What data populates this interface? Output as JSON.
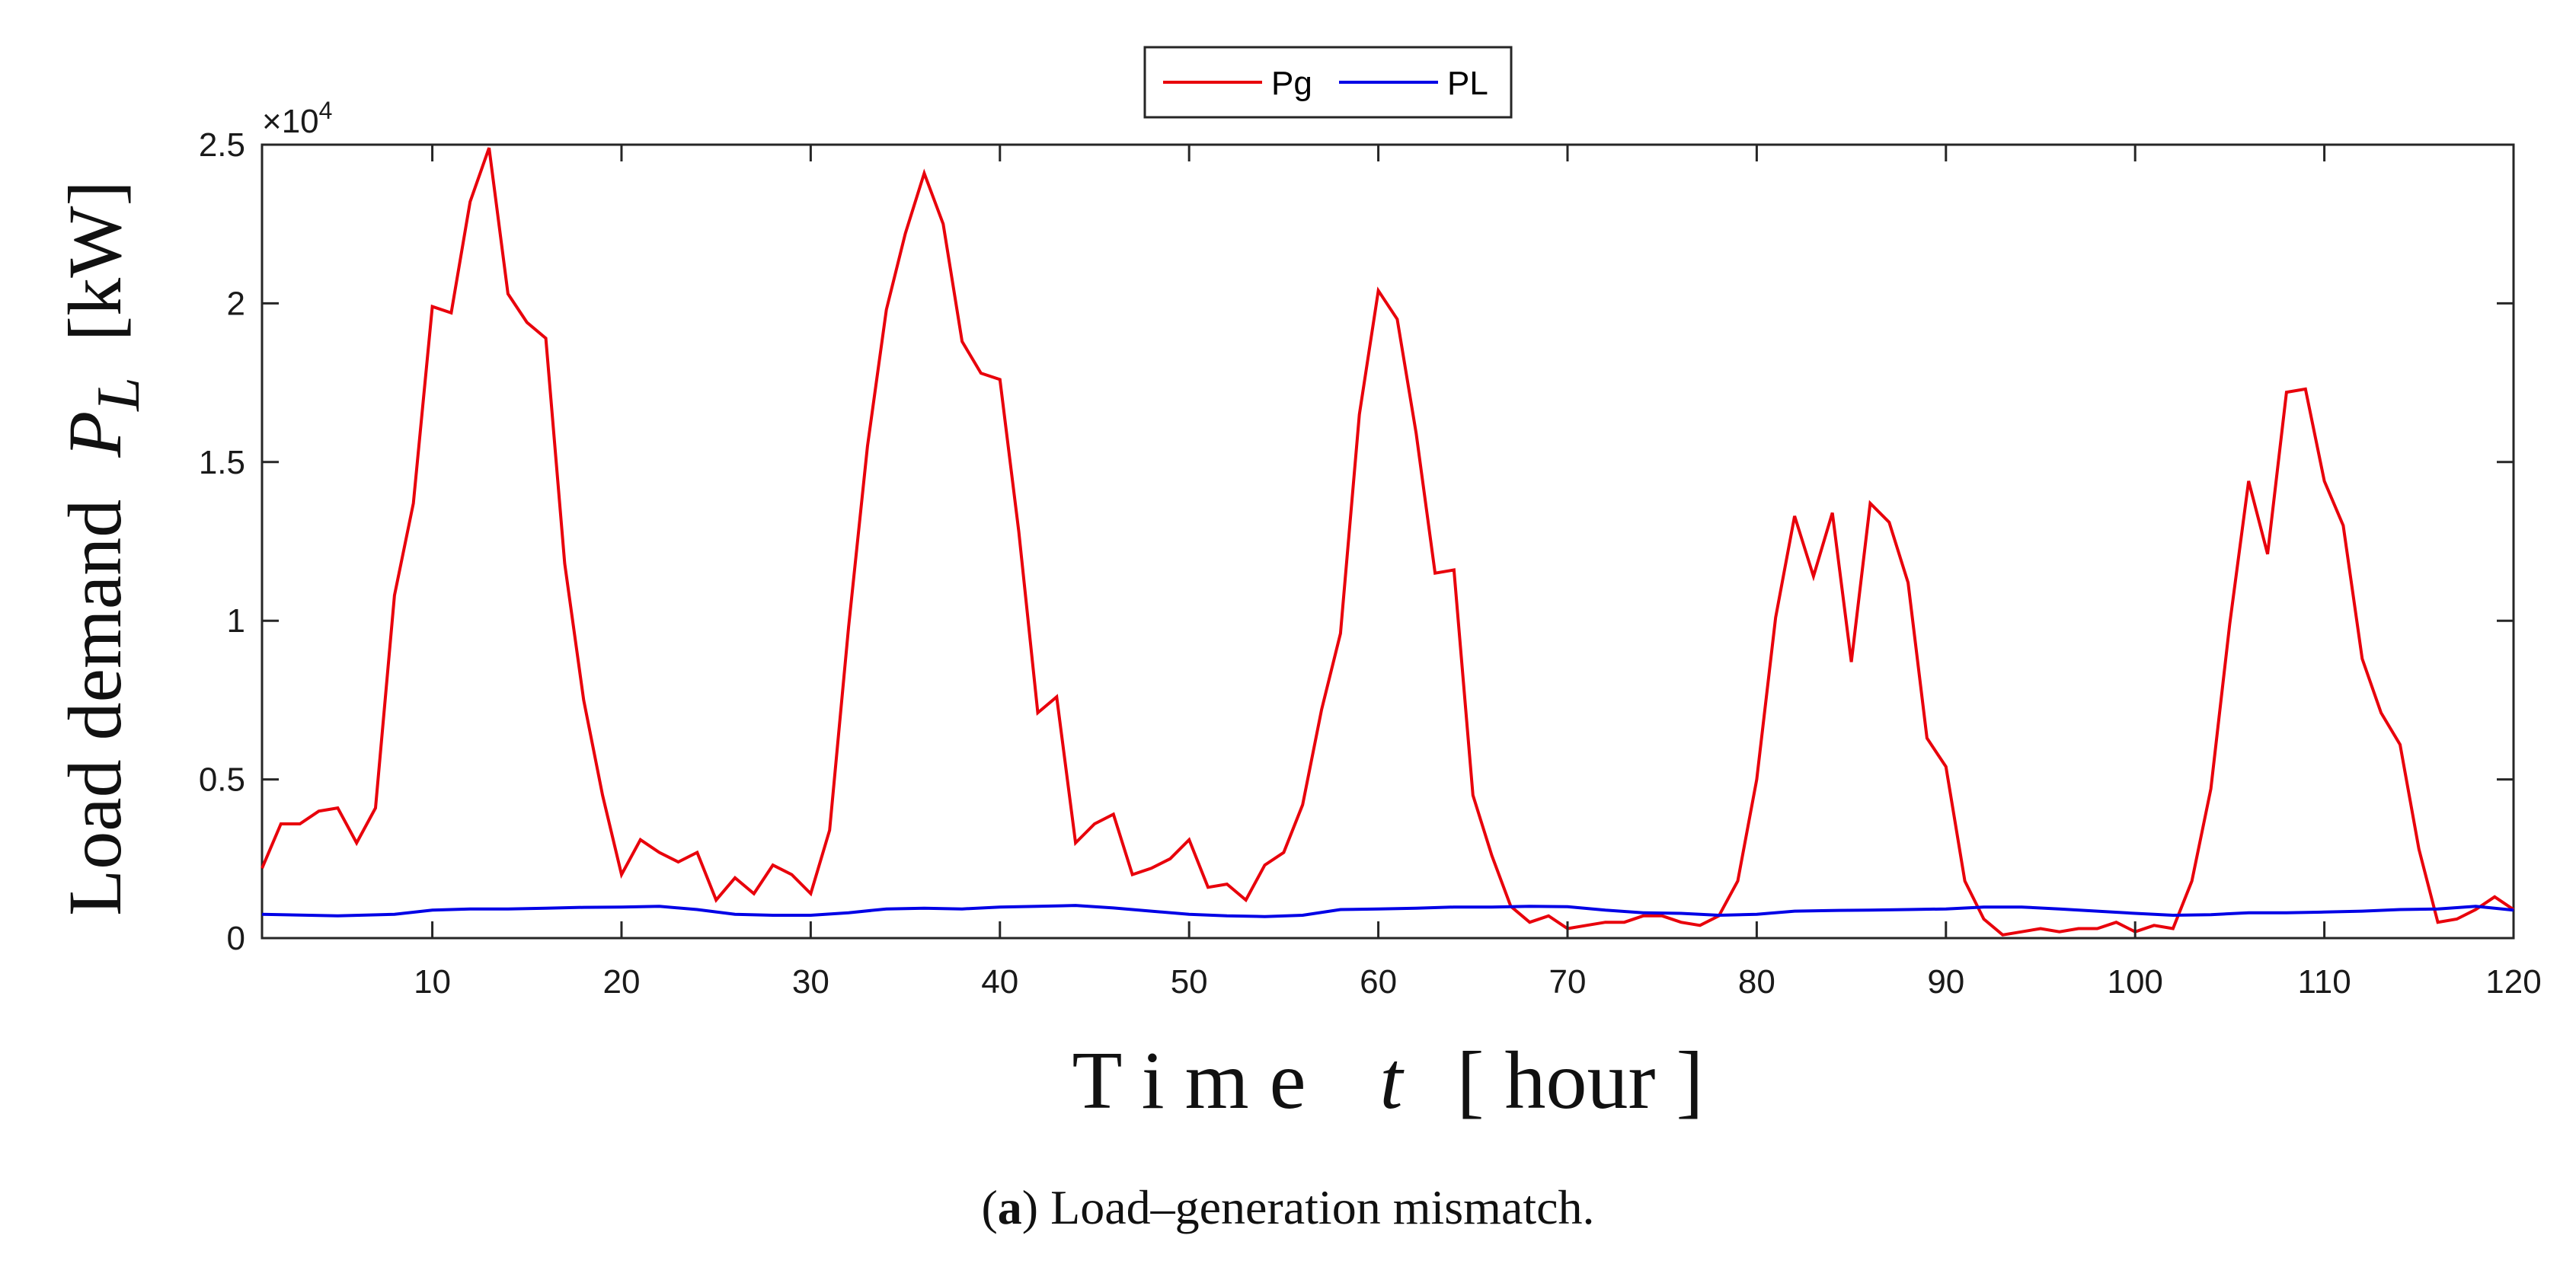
{
  "chart_data": {
    "type": "line",
    "title": "",
    "xlabel": {
      "main": "T i m e",
      "var": "t",
      "unit": "[ hour ]"
    },
    "ylabel": {
      "main": "Load demand",
      "var": "P",
      "sub": "L",
      "unit": "[kW]"
    },
    "y_multiplier": "×10",
    "y_multiplier_exp": "4",
    "xlim": [
      1,
      120
    ],
    "ylim": [
      0,
      2.5
    ],
    "xticks": [
      10,
      20,
      30,
      40,
      50,
      60,
      70,
      80,
      90,
      100,
      110,
      120
    ],
    "yticks": [
      0,
      0.5,
      1,
      1.5,
      2,
      2.5
    ],
    "ytick_labels": [
      "0",
      "0.5",
      "1",
      "1.5",
      "2",
      "2.5"
    ],
    "legend_position": "top-center",
    "grid": false,
    "series": [
      {
        "name": "Pg",
        "color": "#e8000b",
        "x": [
          1,
          2,
          3,
          4,
          5,
          6,
          7,
          8,
          9,
          10,
          11,
          12,
          13,
          14,
          15,
          16,
          17,
          18,
          19,
          20,
          21,
          22,
          23,
          24,
          25,
          26,
          27,
          28,
          29,
          30,
          31,
          32,
          33,
          34,
          35,
          36,
          37,
          38,
          39,
          40,
          41,
          42,
          43,
          44,
          45,
          46,
          47,
          48,
          49,
          50,
          51,
          52,
          53,
          54,
          55,
          56,
          57,
          58,
          59,
          60,
          61,
          62,
          63,
          64,
          65,
          66,
          67,
          68,
          69,
          70,
          71,
          72,
          73,
          74,
          75,
          76,
          77,
          78,
          79,
          80,
          81,
          82,
          83,
          84,
          85,
          86,
          87,
          88,
          89,
          90,
          91,
          92,
          93,
          94,
          95,
          96,
          97,
          98,
          99,
          100,
          101,
          102,
          103,
          104,
          105,
          106,
          107,
          108,
          109,
          110,
          111,
          112,
          113,
          114,
          115,
          116,
          117,
          118,
          119,
          120
        ],
        "values": [
          0.22,
          0.36,
          0.36,
          0.4,
          0.41,
          0.3,
          0.41,
          1.08,
          1.37,
          1.99,
          1.97,
          2.32,
          2.49,
          2.03,
          1.94,
          1.89,
          1.18,
          0.75,
          0.45,
          0.2,
          0.31,
          0.27,
          0.24,
          0.27,
          0.12,
          0.19,
          0.14,
          0.23,
          0.2,
          0.14,
          0.34,
          0.98,
          1.55,
          1.98,
          2.22,
          2.41,
          2.25,
          1.88,
          1.78,
          1.76,
          1.28,
          0.71,
          0.76,
          0.3,
          0.36,
          0.39,
          0.2,
          0.22,
          0.25,
          0.31,
          0.16,
          0.17,
          0.12,
          0.23,
          0.27,
          0.42,
          0.72,
          0.96,
          1.65,
          2.04,
          1.95,
          1.59,
          1.15,
          1.16,
          0.45,
          0.26,
          0.1,
          0.05,
          0.07,
          0.03,
          0.04,
          0.05,
          0.05,
          0.07,
          0.07,
          0.05,
          0.04,
          0.07,
          0.18,
          0.5,
          1.01,
          1.33,
          1.14,
          1.34,
          0.87,
          1.37,
          1.31,
          1.12,
          0.63,
          0.54,
          0.18,
          0.06,
          0.01,
          0.02,
          0.03,
          0.02,
          0.03,
          0.03,
          0.05,
          0.02,
          0.04,
          0.03,
          0.18,
          0.47,
          0.99,
          1.44,
          1.21,
          1.72,
          1.73,
          1.44,
          1.3,
          0.88,
          0.71,
          0.61,
          0.28,
          0.05,
          0.06,
          0.09,
          0.13,
          0.09
        ]
      },
      {
        "name": "PL",
        "color": "#0000e6",
        "x": [
          1,
          5,
          8,
          10,
          12,
          14,
          16,
          18,
          20,
          22,
          24,
          26,
          28,
          30,
          32,
          34,
          36,
          38,
          40,
          42,
          44,
          46,
          48,
          50,
          52,
          54,
          56,
          58,
          60,
          62,
          64,
          66,
          68,
          70,
          72,
          74,
          76,
          78,
          80,
          82,
          84,
          86,
          88,
          90,
          92,
          94,
          96,
          98,
          100,
          102,
          104,
          106,
          108,
          110,
          112,
          114,
          116,
          118,
          120
        ],
        "values": [
          0.075,
          0.07,
          0.075,
          0.088,
          0.092,
          0.092,
          0.094,
          0.097,
          0.098,
          0.1,
          0.09,
          0.075,
          0.072,
          0.072,
          0.08,
          0.092,
          0.094,
          0.092,
          0.098,
          0.1,
          0.103,
          0.095,
          0.085,
          0.075,
          0.07,
          0.068,
          0.072,
          0.09,
          0.092,
          0.094,
          0.098,
          0.098,
          0.1,
          0.099,
          0.088,
          0.08,
          0.078,
          0.072,
          0.075,
          0.085,
          0.087,
          0.088,
          0.09,
          0.092,
          0.098,
          0.098,
          0.092,
          0.085,
          0.078,
          0.072,
          0.074,
          0.08,
          0.08,
          0.082,
          0.085,
          0.09,
          0.092,
          0.1,
          0.088
        ]
      }
    ]
  },
  "caption": {
    "prefix": "(",
    "label": "a",
    "suffix": ")",
    "text": " Load–generation mismatch."
  }
}
